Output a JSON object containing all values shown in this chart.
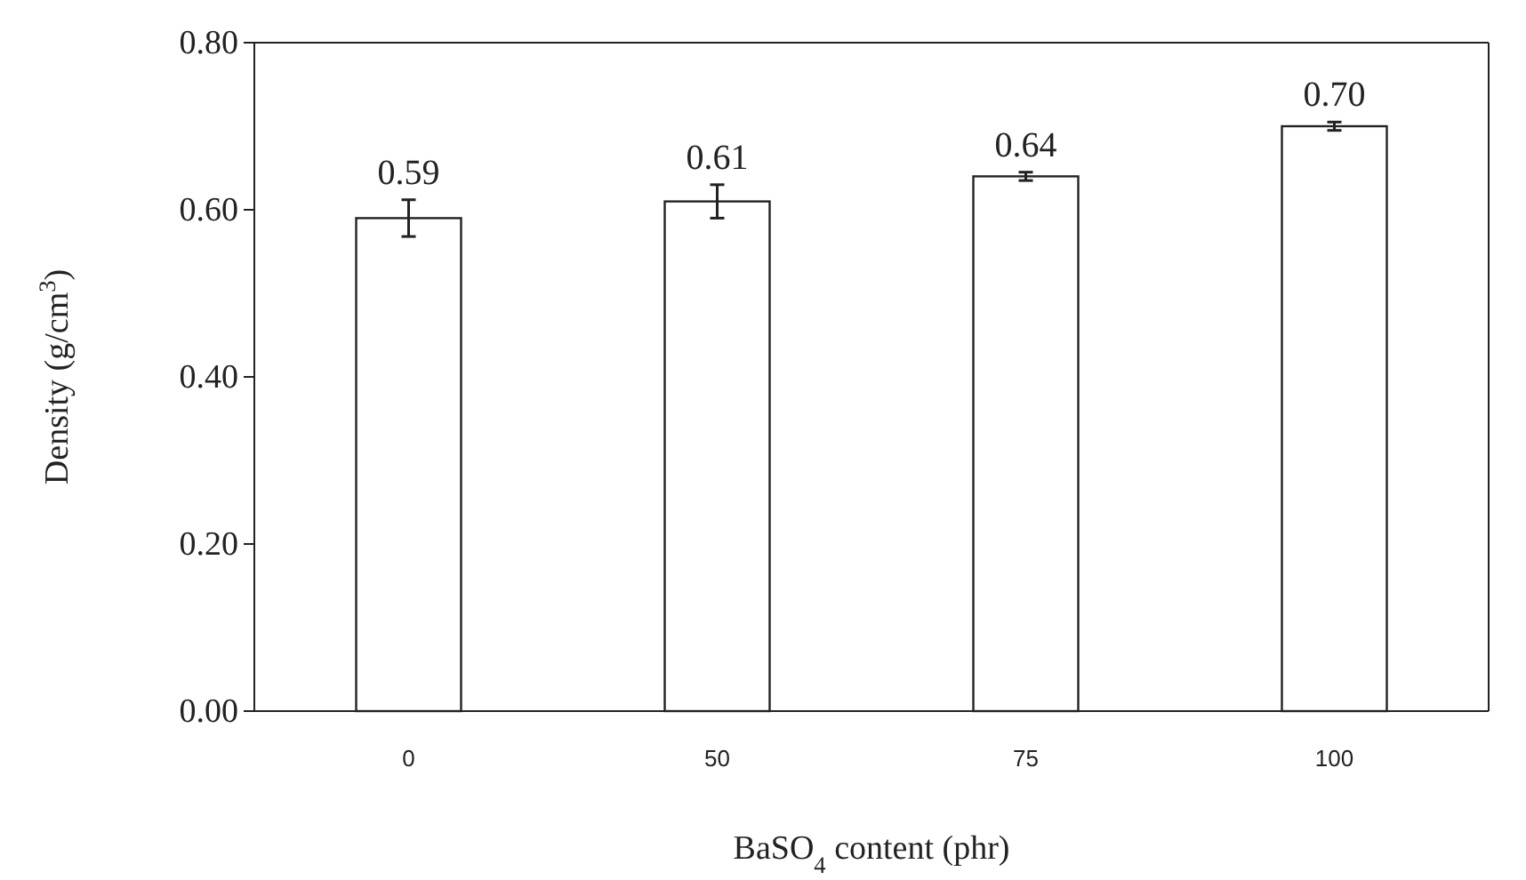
{
  "chart_data": {
    "type": "bar",
    "xlabel": "BaSO$_{4}$ content (phr)",
    "ylabel": "Density (g/cm$^{3}$)",
    "categories": [
      "0",
      "50",
      "75",
      "100"
    ],
    "values": [
      0.59,
      0.61,
      0.64,
      0.7
    ],
    "value_labels": [
      "0.59",
      "0.61",
      "0.64",
      "0.70"
    ],
    "errors": [
      0.022,
      0.02,
      0.005,
      0.005
    ],
    "color": "#ffffff",
    "ylim": [
      0,
      0.8
    ],
    "yticks": [
      {
        "value": 0,
        "label": "0.00"
      },
      {
        "value": 0.2,
        "label": "0.20"
      },
      {
        "value": 0.4,
        "label": "0.40"
      },
      {
        "value": 0.6,
        "label": "0.60"
      },
      {
        "value": 0.8,
        "label": "0.80"
      }
    ],
    "grid": false
  }
}
